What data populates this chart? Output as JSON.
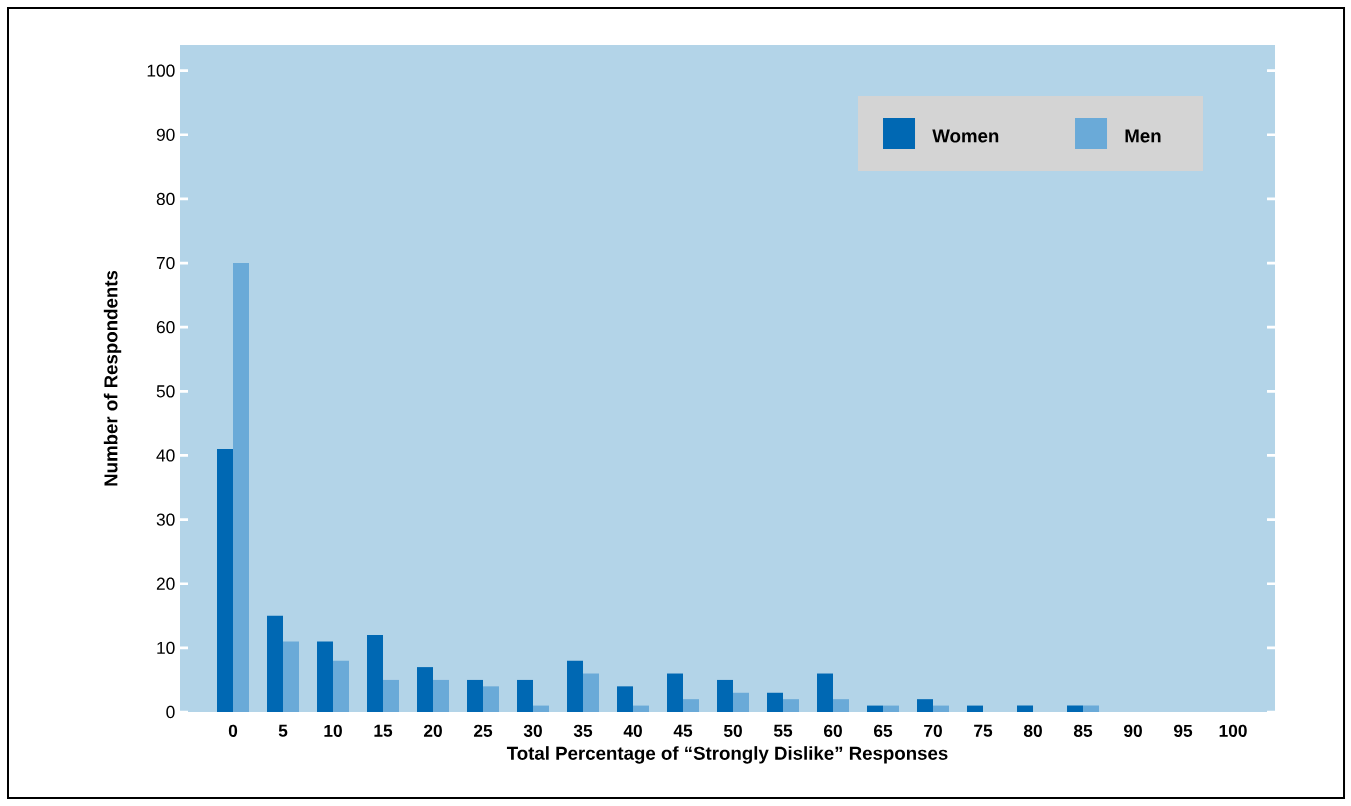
{
  "chart_data": {
    "type": "bar",
    "xlabel": "Total Percentage of “Strongly Dislike” Responses",
    "ylabel": "Number of Respondents",
    "categories": [
      "0",
      "5",
      "10",
      "15",
      "20",
      "25",
      "30",
      "35",
      "40",
      "45",
      "50",
      "55",
      "60",
      "65",
      "70",
      "75",
      "80",
      "85",
      "90",
      "95",
      "100"
    ],
    "series": [
      {
        "name": "Women",
        "color": "#0068b3",
        "values": [
          41,
          15,
          11,
          12,
          7,
          5,
          5,
          8,
          4,
          6,
          5,
          3,
          6,
          1,
          2,
          1,
          1,
          1,
          0,
          0,
          0
        ]
      },
      {
        "name": "Men",
        "color": "#6aaad8",
        "values": [
          70,
          11,
          8,
          5,
          5,
          4,
          1,
          6,
          1,
          2,
          3,
          2,
          2,
          1,
          1,
          0,
          0,
          1,
          0,
          0,
          0
        ]
      }
    ],
    "ylim": [
      0,
      104
    ],
    "yticks": [
      0,
      10,
      20,
      30,
      40,
      50,
      60,
      70,
      80,
      90,
      100
    ],
    "grid": false,
    "legend": "top right"
  }
}
